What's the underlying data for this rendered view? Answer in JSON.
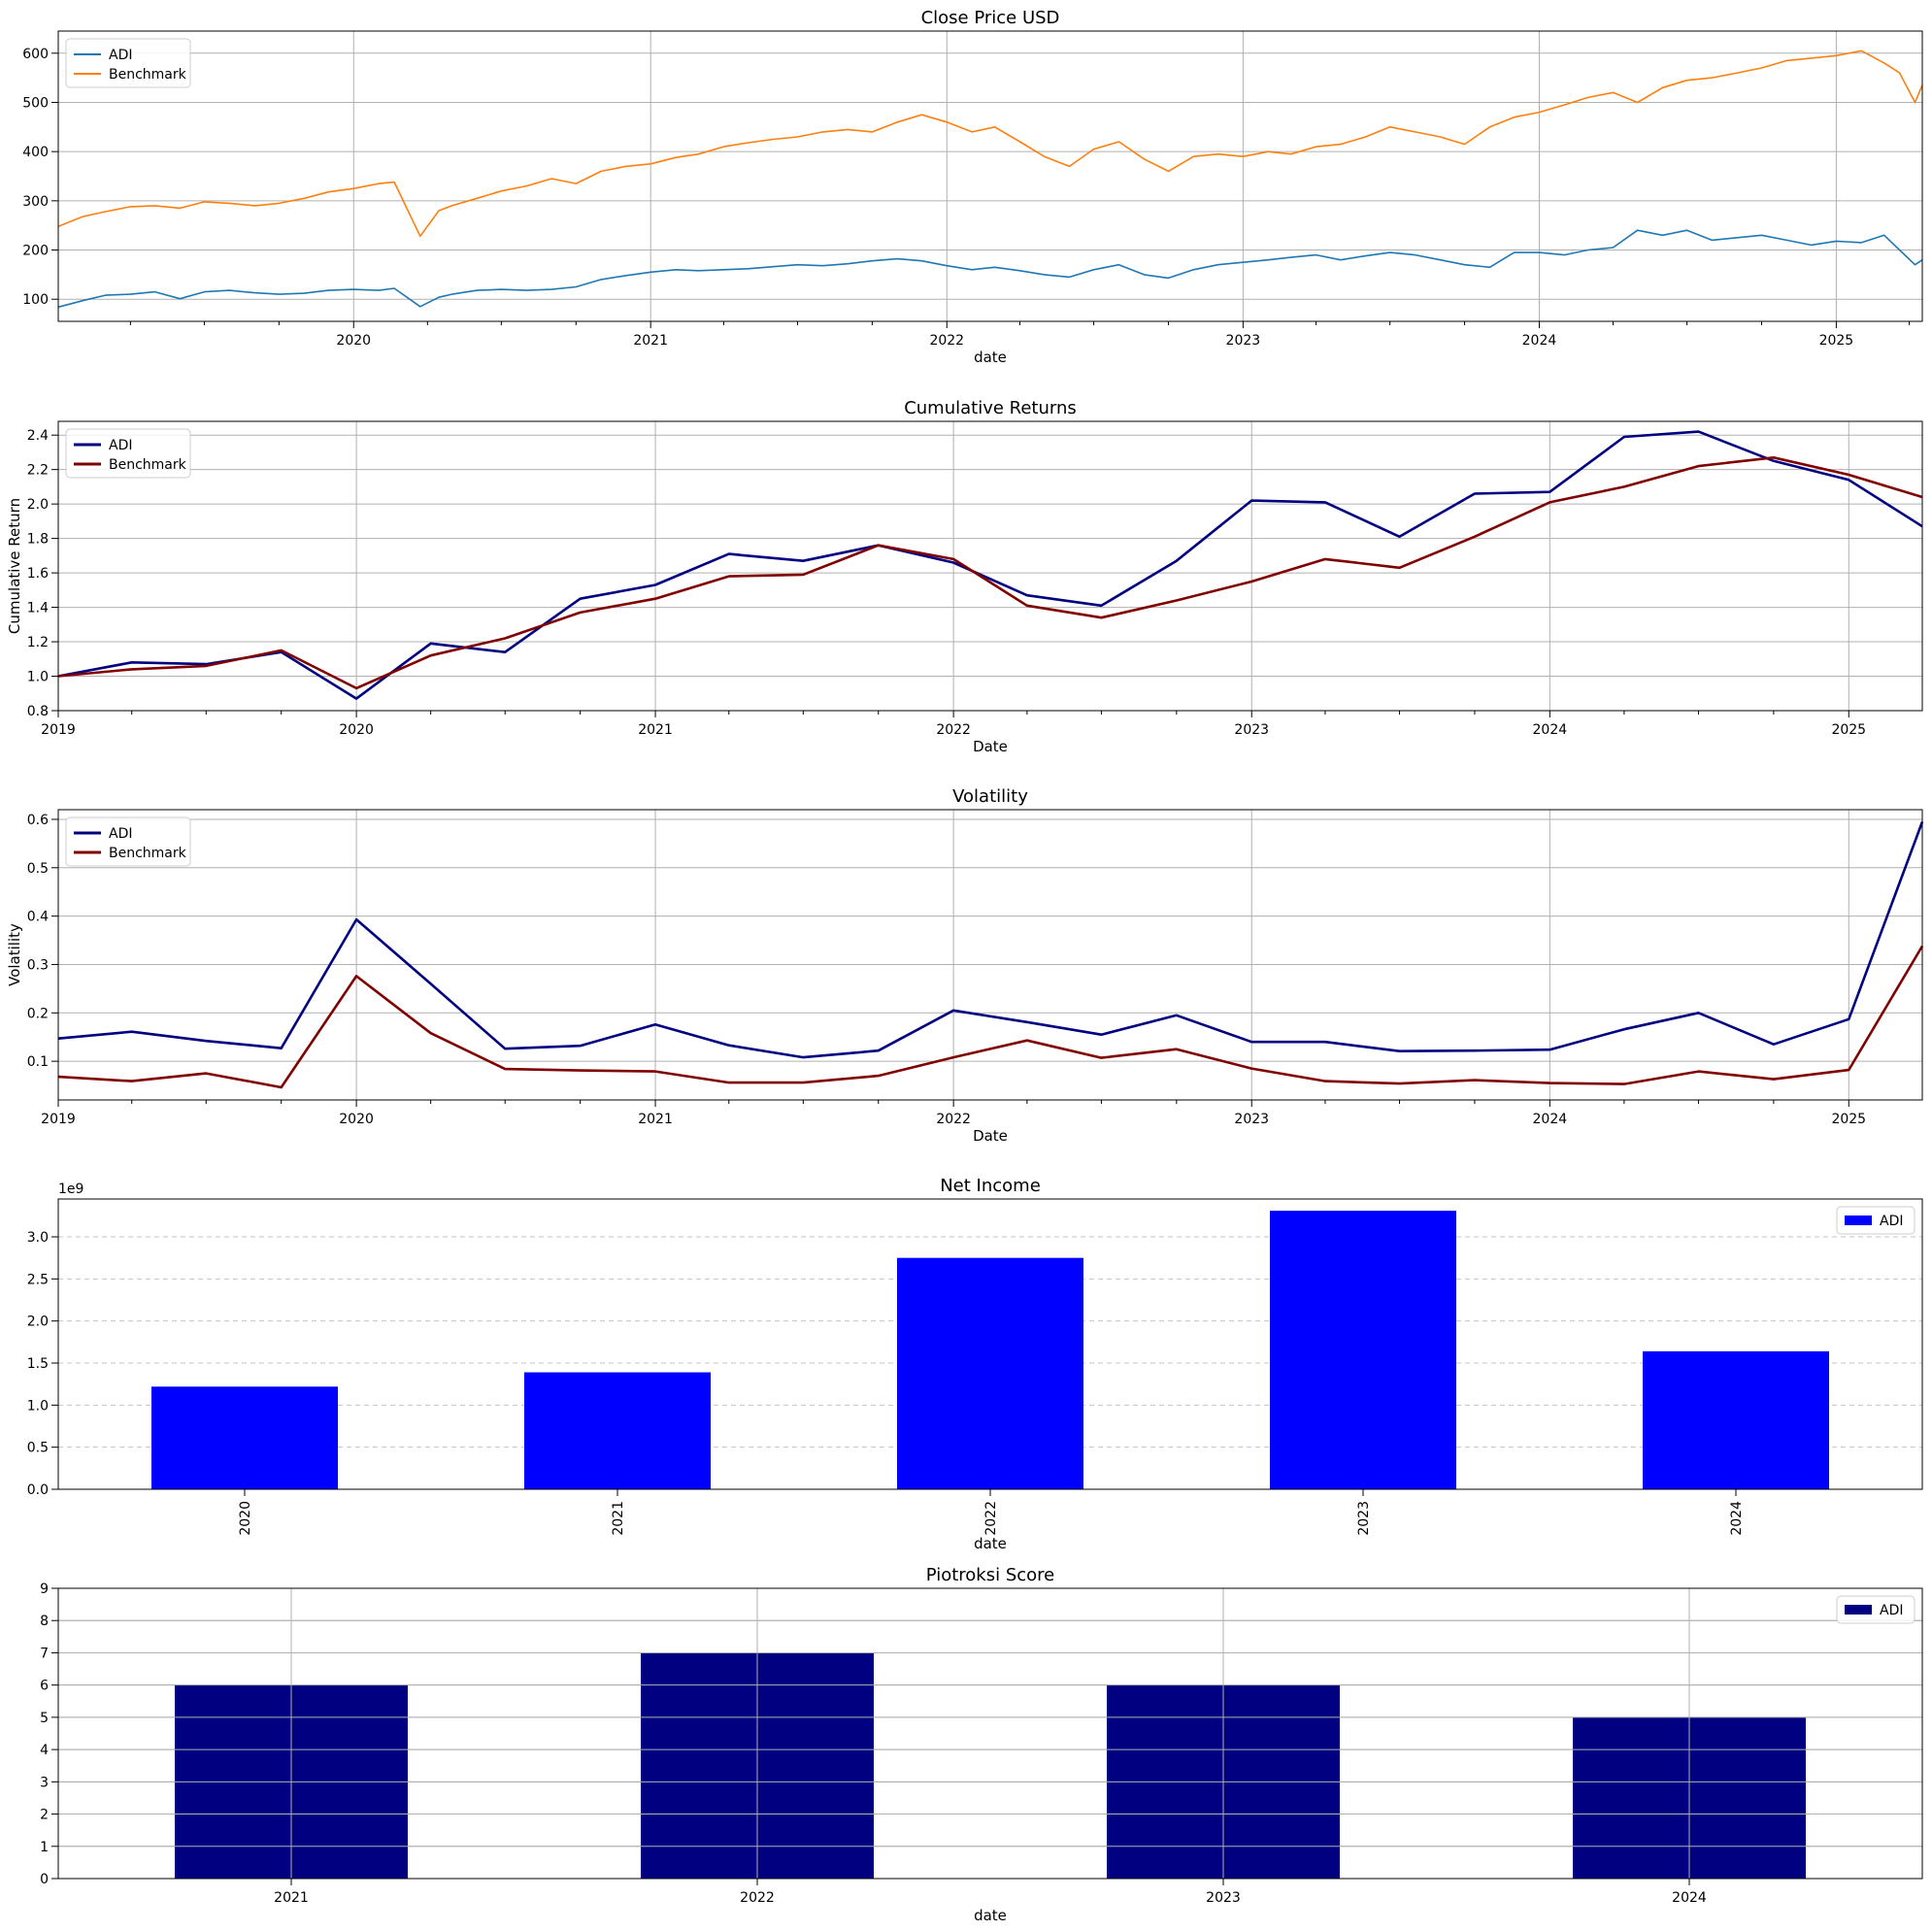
{
  "chart_data": [
    {
      "type": "line",
      "title": "Close Price USD",
      "xlabel": "date",
      "ylabel": "",
      "xlim": [
        "2019-01-02",
        "2025-04-17"
      ],
      "ylim": [
        55,
        645
      ],
      "grid": true,
      "legend_placement": "upper-left",
      "x_ticks": [
        "2020",
        "2021",
        "2022",
        "2023",
        "2024",
        "2025"
      ],
      "y_ticks": [
        100,
        200,
        300,
        400,
        500,
        600
      ],
      "series": [
        {
          "name": "ADI",
          "color": "#1f77b4",
          "x": [
            "2019-01-02",
            "2019-02-01",
            "2019-03-01",
            "2019-04-01",
            "2019-05-01",
            "2019-06-01",
            "2019-07-01",
            "2019-08-01",
            "2019-09-01",
            "2019-10-01",
            "2019-11-01",
            "2019-12-01",
            "2020-01-01",
            "2020-02-01",
            "2020-02-20",
            "2020-03-23",
            "2020-04-15",
            "2020-05-01",
            "2020-06-01",
            "2020-07-01",
            "2020-08-01",
            "2020-09-01",
            "2020-10-01",
            "2020-11-01",
            "2020-12-01",
            "2021-01-01",
            "2021-02-01",
            "2021-03-01",
            "2021-04-01",
            "2021-05-01",
            "2021-06-01",
            "2021-07-01",
            "2021-08-01",
            "2021-09-01",
            "2021-10-01",
            "2021-11-01",
            "2021-12-01",
            "2022-01-01",
            "2022-02-01",
            "2022-03-01",
            "2022-04-01",
            "2022-05-01",
            "2022-06-01",
            "2022-07-01",
            "2022-08-01",
            "2022-09-01",
            "2022-10-01",
            "2022-11-01",
            "2022-12-01",
            "2023-01-01",
            "2023-02-01",
            "2023-03-01",
            "2023-04-01",
            "2023-05-01",
            "2023-06-01",
            "2023-07-01",
            "2023-08-01",
            "2023-09-01",
            "2023-10-01",
            "2023-11-01",
            "2023-12-01",
            "2024-01-01",
            "2024-02-01",
            "2024-03-01",
            "2024-04-01",
            "2024-05-01",
            "2024-06-01",
            "2024-07-01",
            "2024-08-01",
            "2024-09-01",
            "2024-10-01",
            "2024-11-01",
            "2024-12-01",
            "2025-01-01",
            "2025-02-01",
            "2025-03-01",
            "2025-03-20",
            "2025-04-08",
            "2025-04-17"
          ],
          "values": [
            84,
            97,
            108,
            110,
            115,
            101,
            115,
            118,
            113,
            110,
            112,
            118,
            120,
            118,
            122,
            85,
            104,
            110,
            118,
            120,
            118,
            120,
            125,
            140,
            148,
            155,
            160,
            158,
            160,
            162,
            166,
            170,
            168,
            172,
            178,
            182,
            178,
            168,
            160,
            165,
            158,
            150,
            145,
            160,
            170,
            150,
            143,
            160,
            170,
            175,
            180,
            185,
            190,
            180,
            188,
            195,
            190,
            180,
            170,
            165,
            195,
            195,
            190,
            200,
            205,
            240,
            230,
            240,
            220,
            225,
            230,
            220,
            210,
            218,
            215,
            230,
            200,
            170,
            180
          ]
        },
        {
          "name": "Benchmark",
          "color": "#ff7f0e",
          "x": [
            "2019-01-02",
            "2019-02-01",
            "2019-03-01",
            "2019-04-01",
            "2019-05-01",
            "2019-06-01",
            "2019-07-01",
            "2019-08-01",
            "2019-09-01",
            "2019-10-01",
            "2019-11-01",
            "2019-12-01",
            "2020-01-01",
            "2020-02-01",
            "2020-02-20",
            "2020-03-23",
            "2020-04-15",
            "2020-05-01",
            "2020-06-01",
            "2020-07-01",
            "2020-08-01",
            "2020-09-01",
            "2020-10-01",
            "2020-11-01",
            "2020-12-01",
            "2021-01-01",
            "2021-02-01",
            "2021-03-01",
            "2021-04-01",
            "2021-05-01",
            "2021-06-01",
            "2021-07-01",
            "2021-08-01",
            "2021-09-01",
            "2021-10-01",
            "2021-11-01",
            "2021-12-01",
            "2022-01-01",
            "2022-02-01",
            "2022-03-01",
            "2022-04-01",
            "2022-05-01",
            "2022-06-01",
            "2022-07-01",
            "2022-08-01",
            "2022-09-01",
            "2022-10-01",
            "2022-11-01",
            "2022-12-01",
            "2023-01-01",
            "2023-02-01",
            "2023-03-01",
            "2023-04-01",
            "2023-05-01",
            "2023-06-01",
            "2023-07-01",
            "2023-08-01",
            "2023-09-01",
            "2023-10-01",
            "2023-11-01",
            "2023-12-01",
            "2024-01-01",
            "2024-02-01",
            "2024-03-01",
            "2024-04-01",
            "2024-05-01",
            "2024-06-01",
            "2024-07-01",
            "2024-08-01",
            "2024-09-01",
            "2024-10-01",
            "2024-11-01",
            "2024-12-01",
            "2025-01-01",
            "2025-02-01",
            "2025-03-01",
            "2025-03-20",
            "2025-04-08",
            "2025-04-17"
          ],
          "values": [
            248,
            268,
            278,
            288,
            290,
            285,
            298,
            295,
            290,
            295,
            305,
            318,
            325,
            335,
            338,
            228,
            280,
            290,
            305,
            320,
            330,
            345,
            335,
            360,
            370,
            375,
            388,
            395,
            410,
            418,
            425,
            430,
            440,
            445,
            440,
            460,
            475,
            460,
            440,
            450,
            420,
            390,
            370,
            405,
            420,
            385,
            360,
            390,
            395,
            390,
            400,
            395,
            410,
            415,
            430,
            450,
            440,
            430,
            415,
            450,
            470,
            480,
            495,
            510,
            520,
            500,
            530,
            545,
            550,
            560,
            570,
            585,
            590,
            595,
            605,
            580,
            560,
            500,
            535
          ]
        }
      ]
    },
    {
      "type": "line",
      "title": "Cumulative Returns",
      "xlabel": "Date",
      "ylabel": "Cumulative Return",
      "xlim": [
        "2019-01-01",
        "2025-04-01"
      ],
      "ylim": [
        0.8,
        2.48
      ],
      "grid": true,
      "legend_placement": "upper-left",
      "x_ticks": [
        "2019",
        "2020",
        "2021",
        "2022",
        "2023",
        "2024",
        "2025"
      ],
      "y_ticks": [
        "0.8",
        "1.0",
        "1.2",
        "1.4",
        "1.6",
        "1.8",
        "2.0",
        "2.2",
        "2.4"
      ],
      "series": [
        {
          "name": "ADI",
          "color": "#000080",
          "x": [
            "2019-01-01",
            "2019-04-01",
            "2019-07-01",
            "2019-10-01",
            "2020-01-01",
            "2020-04-01",
            "2020-07-01",
            "2020-10-01",
            "2021-01-01",
            "2021-04-01",
            "2021-07-01",
            "2021-10-01",
            "2022-01-01",
            "2022-04-01",
            "2022-07-01",
            "2022-10-01",
            "2023-01-01",
            "2023-04-01",
            "2023-07-01",
            "2023-10-01",
            "2024-01-01",
            "2024-04-01",
            "2024-07-01",
            "2024-10-01",
            "2025-01-01",
            "2025-04-01"
          ],
          "values": [
            1.0,
            1.08,
            1.07,
            1.14,
            0.87,
            1.19,
            1.14,
            1.45,
            1.53,
            1.71,
            1.67,
            1.76,
            1.66,
            1.47,
            1.41,
            1.67,
            2.02,
            2.01,
            1.81,
            2.06,
            2.07,
            2.39,
            2.42,
            2.25,
            2.14,
            1.87
          ]
        },
        {
          "name": "Benchmark",
          "color": "#800000",
          "x": [
            "2019-01-01",
            "2019-04-01",
            "2019-07-01",
            "2019-10-01",
            "2020-01-01",
            "2020-04-01",
            "2020-07-01",
            "2020-10-01",
            "2021-01-01",
            "2021-04-01",
            "2021-07-01",
            "2021-10-01",
            "2022-01-01",
            "2022-04-01",
            "2022-07-01",
            "2022-10-01",
            "2023-01-01",
            "2023-04-01",
            "2023-07-01",
            "2023-10-01",
            "2024-01-01",
            "2024-04-01",
            "2024-07-01",
            "2024-10-01",
            "2025-01-01",
            "2025-04-01"
          ],
          "values": [
            1.0,
            1.04,
            1.06,
            1.15,
            0.93,
            1.12,
            1.22,
            1.37,
            1.45,
            1.58,
            1.59,
            1.76,
            1.68,
            1.41,
            1.34,
            1.44,
            1.55,
            1.68,
            1.63,
            1.81,
            2.01,
            2.1,
            2.22,
            2.27,
            2.17,
            2.04
          ]
        }
      ]
    },
    {
      "type": "line",
      "title": "Volatility",
      "xlabel": "Date",
      "ylabel": "Volatility",
      "xlim": [
        "2019-01-01",
        "2025-04-01"
      ],
      "ylim": [
        0.02,
        0.62
      ],
      "grid": true,
      "legend_placement": "upper-left",
      "x_ticks": [
        "2019",
        "2020",
        "2021",
        "2022",
        "2023",
        "2024",
        "2025"
      ],
      "y_ticks": [
        "0.1",
        "0.2",
        "0.3",
        "0.4",
        "0.5",
        "0.6"
      ],
      "series": [
        {
          "name": "ADI",
          "color": "#000080",
          "x": [
            "2019-01-01",
            "2019-04-01",
            "2019-07-01",
            "2019-10-01",
            "2020-01-01",
            "2020-04-01",
            "2020-07-01",
            "2020-10-01",
            "2021-01-01",
            "2021-04-01",
            "2021-07-01",
            "2021-10-01",
            "2022-01-01",
            "2022-04-01",
            "2022-07-01",
            "2022-10-01",
            "2023-01-01",
            "2023-04-01",
            "2023-07-01",
            "2023-10-01",
            "2024-01-01",
            "2024-04-01",
            "2024-07-01",
            "2024-10-01",
            "2025-01-01",
            "2025-04-01"
          ],
          "values": [
            0.147,
            0.161,
            0.142,
            0.127,
            0.393,
            0.26,
            0.126,
            0.132,
            0.176,
            0.133,
            0.108,
            0.122,
            0.205,
            0.181,
            0.155,
            0.195,
            0.14,
            0.14,
            0.121,
            0.122,
            0.124,
            0.166,
            0.2,
            0.135,
            0.187,
            0.595
          ]
        },
        {
          "name": "Benchmark",
          "color": "#800000",
          "x": [
            "2019-01-01",
            "2019-04-01",
            "2019-07-01",
            "2019-10-01",
            "2020-01-01",
            "2020-04-01",
            "2020-07-01",
            "2020-10-01",
            "2021-01-01",
            "2021-04-01",
            "2021-07-01",
            "2021-10-01",
            "2022-01-01",
            "2022-04-01",
            "2022-07-01",
            "2022-10-01",
            "2023-01-01",
            "2023-04-01",
            "2023-07-01",
            "2023-10-01",
            "2024-01-01",
            "2024-04-01",
            "2024-07-01",
            "2024-10-01",
            "2025-01-01",
            "2025-04-01"
          ],
          "values": [
            0.068,
            0.059,
            0.075,
            0.046,
            0.276,
            0.158,
            0.084,
            0.081,
            0.079,
            0.056,
            0.056,
            0.07,
            0.108,
            0.143,
            0.107,
            0.125,
            0.085,
            0.059,
            0.054,
            0.061,
            0.055,
            0.053,
            0.079,
            0.063,
            0.082,
            0.338
          ]
        }
      ]
    },
    {
      "type": "bar",
      "title": "Net Income",
      "xlabel": "date",
      "ylabel": "",
      "offset_label": "1e9",
      "categories": [
        "2020",
        "2021",
        "2022",
        "2023",
        "2024"
      ],
      "ylim": [
        0,
        3.45
      ],
      "y_ticks": [
        "0.0",
        "0.5",
        "1.0",
        "1.5",
        "2.0",
        "2.5",
        "3.0"
      ],
      "grid": "horizontal-dashed",
      "legend_placement": "upper-right",
      "series": [
        {
          "name": "ADI",
          "color": "#0000ff",
          "values": [
            1.22,
            1.39,
            2.75,
            3.31,
            1.64
          ]
        }
      ]
    },
    {
      "type": "bar",
      "title": "Piotroksi Score",
      "xlabel": "date",
      "ylabel": "",
      "categories": [
        "2021",
        "2022",
        "2023",
        "2024"
      ],
      "ylim": [
        0,
        9
      ],
      "y_ticks": [
        "0",
        "1",
        "2",
        "3",
        "4",
        "5",
        "6",
        "7",
        "8",
        "9"
      ],
      "grid": true,
      "legend_placement": "upper-right",
      "series": [
        {
          "name": "ADI",
          "color": "#000080",
          "values": [
            6,
            7,
            6,
            5
          ]
        }
      ]
    }
  ]
}
